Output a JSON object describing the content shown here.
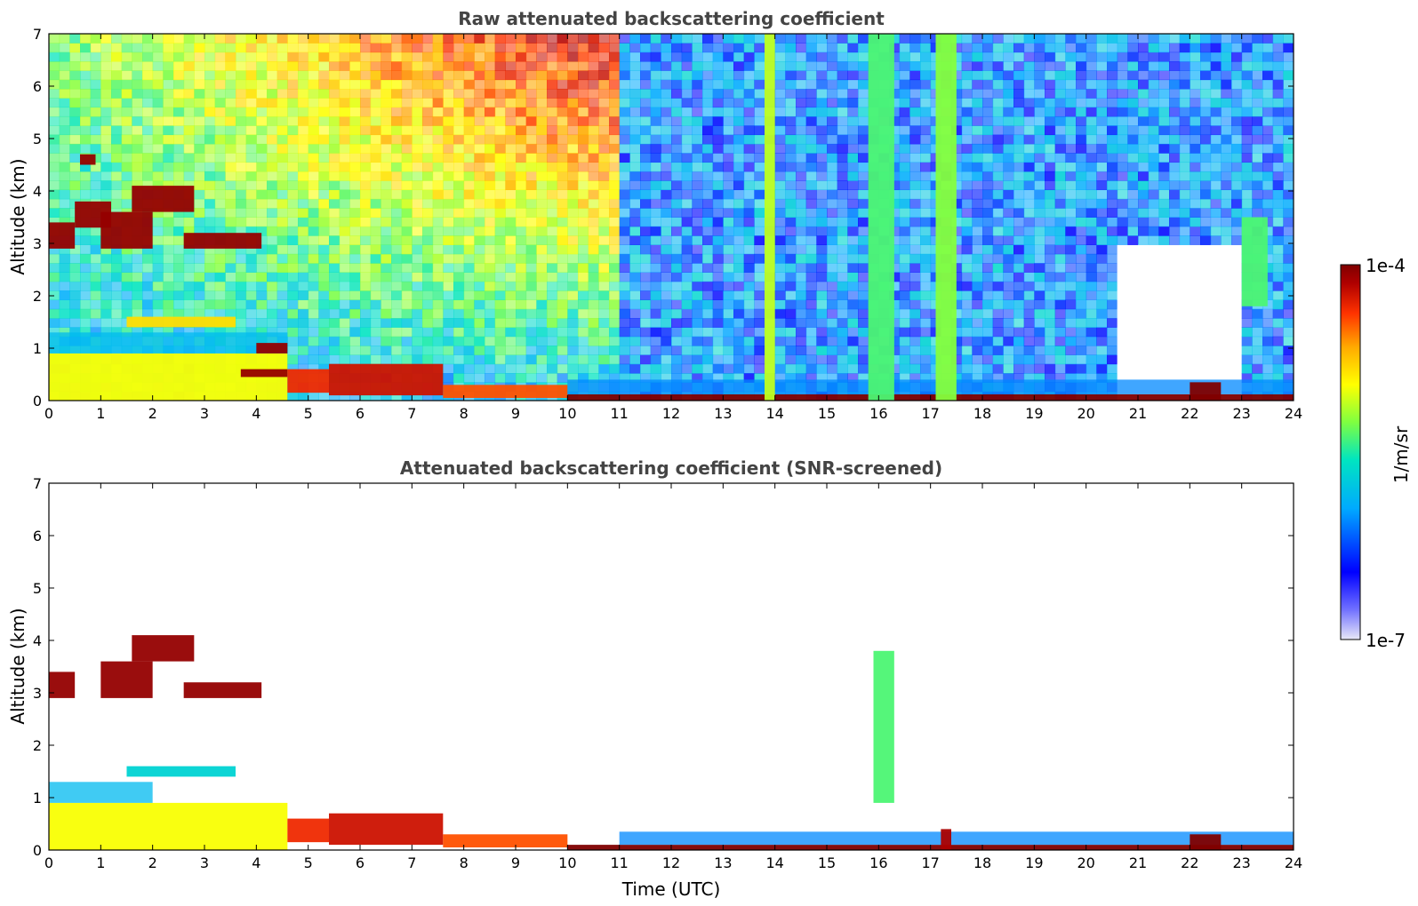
{
  "chart_data": [
    {
      "type": "heatmap",
      "title": "Raw attenuated backscattering coefficient",
      "xlabel": "",
      "ylabel": "Altitude (km)",
      "xlim": [
        0,
        24
      ],
      "ylim": [
        0,
        7
      ],
      "x_ticks": [
        "0",
        "1",
        "2",
        "3",
        "4",
        "5",
        "6",
        "7",
        "8",
        "9",
        "10",
        "11",
        "12",
        "13",
        "14",
        "15",
        "16",
        "17",
        "18",
        "19",
        "20",
        "21",
        "22",
        "23",
        "24"
      ],
      "y_ticks": [
        "0",
        "1",
        "2",
        "3",
        "4",
        "5",
        "6",
        "7"
      ],
      "features": [
        {
          "x0": 0.0,
          "x1": 4.6,
          "y0": 0.0,
          "y1": 0.9,
          "level": 0.55
        },
        {
          "x0": 0.0,
          "x1": 4.6,
          "y0": 0.9,
          "y1": 1.3,
          "level": 0.25
        },
        {
          "x0": 0.0,
          "x1": 0.5,
          "y0": 2.9,
          "y1": 3.4,
          "level": 0.95
        },
        {
          "x0": 0.5,
          "x1": 1.2,
          "y0": 3.3,
          "y1": 3.8,
          "level": 0.95
        },
        {
          "x0": 1.0,
          "x1": 2.0,
          "y0": 2.9,
          "y1": 3.6,
          "level": 0.95
        },
        {
          "x0": 1.6,
          "x1": 2.8,
          "y0": 3.6,
          "y1": 4.1,
          "level": 0.95
        },
        {
          "x0": 2.6,
          "x1": 4.1,
          "y0": 2.9,
          "y1": 3.2,
          "level": 0.95
        },
        {
          "x0": 0.6,
          "x1": 0.9,
          "y0": 4.5,
          "y1": 4.7,
          "level": 0.95
        },
        {
          "x0": 1.5,
          "x1": 3.6,
          "y0": 1.4,
          "y1": 1.6,
          "level": 0.6
        },
        {
          "x0": 4.0,
          "x1": 4.6,
          "y0": 0.9,
          "y1": 1.1,
          "level": 0.95
        },
        {
          "x0": 3.7,
          "x1": 4.6,
          "y0": 0.45,
          "y1": 0.6,
          "level": 0.95
        },
        {
          "x0": 4.6,
          "x1": 5.4,
          "y0": 0.15,
          "y1": 0.6,
          "level": 0.8
        },
        {
          "x0": 5.4,
          "x1": 7.6,
          "y0": 0.1,
          "y1": 0.7,
          "level": 0.85
        },
        {
          "x0": 7.6,
          "x1": 10.0,
          "y0": 0.05,
          "y1": 0.3,
          "level": 0.75
        },
        {
          "x0": 10.0,
          "x1": 24.0,
          "y0": 0.0,
          "y1": 0.12,
          "level": 1.0
        },
        {
          "x0": 10.0,
          "x1": 24.0,
          "y0": 0.12,
          "y1": 0.4,
          "level": 0.2
        },
        {
          "x0": 17.1,
          "x1": 17.5,
          "y0": 0.0,
          "y1": 7.0,
          "level": 0.45
        },
        {
          "x0": 15.8,
          "x1": 16.3,
          "y0": 0.0,
          "y1": 7.0,
          "level": 0.4
        },
        {
          "x0": 13.8,
          "x1": 14.0,
          "y0": 0.0,
          "y1": 7.0,
          "level": 0.5
        },
        {
          "x0": 23.0,
          "x1": 23.5,
          "y0": 1.8,
          "y1": 3.5,
          "level": 0.4
        },
        {
          "x0": 22.0,
          "x1": 22.6,
          "y0": 0.0,
          "y1": 0.35,
          "level": 1.0
        }
      ]
    },
    {
      "type": "heatmap",
      "title": "Attenuated backscattering coefficient (SNR-screened)",
      "xlabel": "Time (UTC)",
      "ylabel": "Altitude (km)",
      "xlim": [
        0,
        24
      ],
      "ylim": [
        0,
        7
      ],
      "x_ticks": [
        "0",
        "1",
        "2",
        "3",
        "4",
        "5",
        "6",
        "7",
        "8",
        "9",
        "10",
        "11",
        "12",
        "13",
        "14",
        "15",
        "16",
        "17",
        "18",
        "19",
        "20",
        "21",
        "22",
        "23",
        "24"
      ],
      "y_ticks": [
        "0",
        "1",
        "2",
        "3",
        "4",
        "5",
        "6",
        "7"
      ],
      "features": [
        {
          "x0": 0.0,
          "x1": 4.6,
          "y0": 0.0,
          "y1": 0.9,
          "level": 0.55
        },
        {
          "x0": 0.0,
          "x1": 2.0,
          "y0": 0.9,
          "y1": 1.3,
          "level": 0.25
        },
        {
          "x0": 0.0,
          "x1": 0.5,
          "y0": 2.9,
          "y1": 3.4,
          "level": 0.95
        },
        {
          "x0": 1.0,
          "x1": 2.0,
          "y0": 2.9,
          "y1": 3.6,
          "level": 0.95
        },
        {
          "x0": 1.6,
          "x1": 2.8,
          "y0": 3.6,
          "y1": 4.1,
          "level": 0.95
        },
        {
          "x0": 2.6,
          "x1": 4.1,
          "y0": 2.9,
          "y1": 3.2,
          "level": 0.95
        },
        {
          "x0": 1.5,
          "x1": 3.6,
          "y0": 1.4,
          "y1": 1.6,
          "level": 0.3
        },
        {
          "x0": 4.6,
          "x1": 5.4,
          "y0": 0.15,
          "y1": 0.6,
          "level": 0.8
        },
        {
          "x0": 5.4,
          "x1": 7.6,
          "y0": 0.1,
          "y1": 0.7,
          "level": 0.85
        },
        {
          "x0": 7.6,
          "x1": 10.0,
          "y0": 0.05,
          "y1": 0.3,
          "level": 0.75
        },
        {
          "x0": 10.0,
          "x1": 24.0,
          "y0": 0.0,
          "y1": 0.1,
          "level": 1.0
        },
        {
          "x0": 11.0,
          "x1": 24.0,
          "y0": 0.1,
          "y1": 0.35,
          "level": 0.2
        },
        {
          "x0": 15.9,
          "x1": 16.3,
          "y0": 0.9,
          "y1": 3.8,
          "level": 0.4
        },
        {
          "x0": 17.2,
          "x1": 17.4,
          "y0": 0.0,
          "y1": 0.4,
          "level": 0.9
        },
        {
          "x0": 22.0,
          "x1": 22.6,
          "y0": 0.0,
          "y1": 0.3,
          "level": 1.0
        }
      ]
    }
  ],
  "colorbar": {
    "label": "1/m/sr",
    "max_label": "1e-4",
    "min_label": "1e-7",
    "scale": "log",
    "colors": [
      "#e8e8f8",
      "#0000ff",
      "#00aaff",
      "#00e5c0",
      "#7fff40",
      "#ffff00",
      "#ffaa00",
      "#ff3300",
      "#b00000",
      "#7f0000"
    ]
  }
}
